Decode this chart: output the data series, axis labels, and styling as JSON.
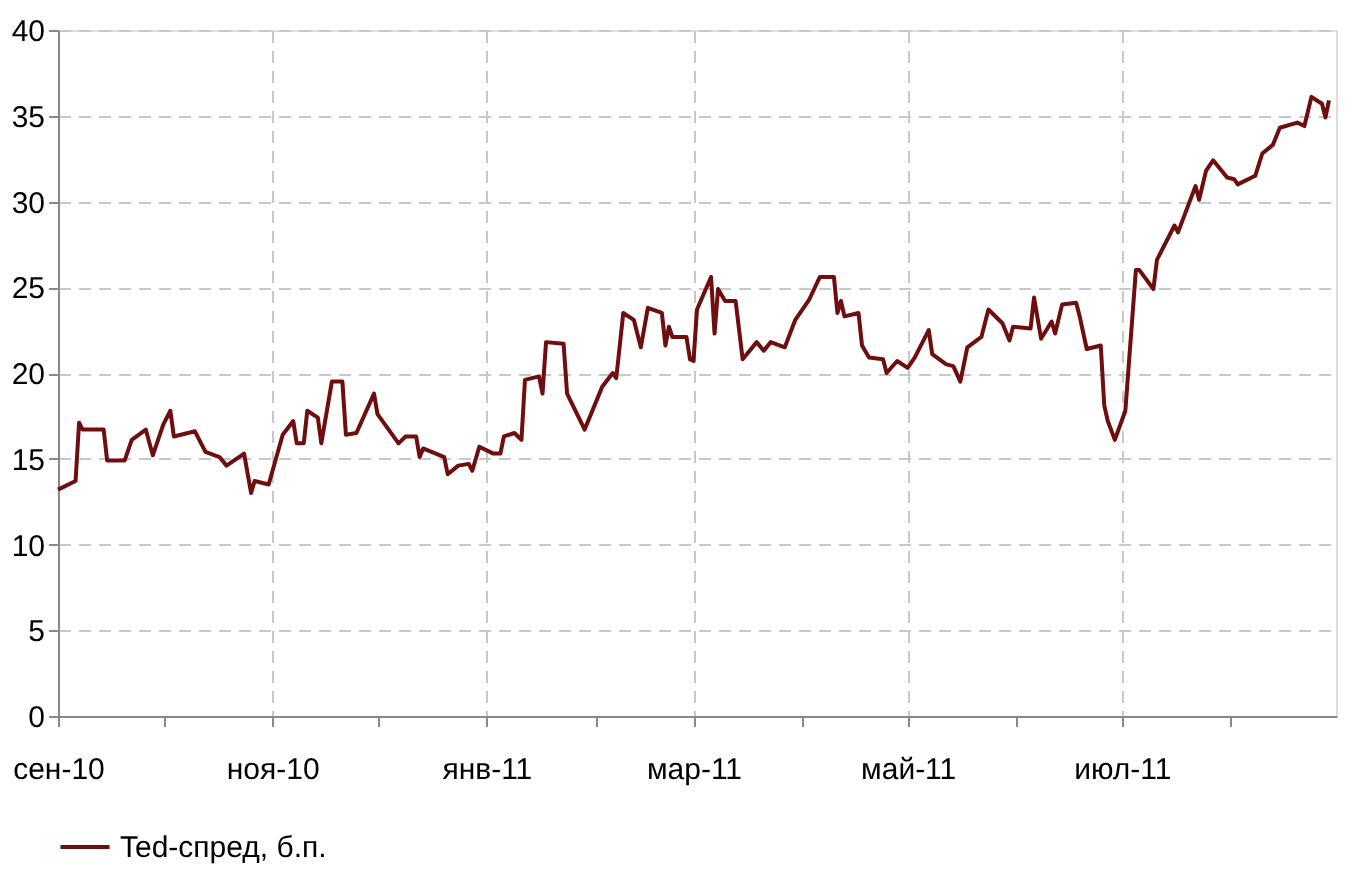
{
  "chart_data": {
    "type": "line",
    "xlim": [
      "2010-09-01",
      "2011-08-31"
    ],
    "xticks": [
      {
        "value": "2010-09-01",
        "label": "сен-10"
      },
      {
        "value": "2010-10-01",
        "label": null
      },
      {
        "value": "2010-11-01",
        "label": "ноя-10"
      },
      {
        "value": "2010-12-01",
        "label": null
      },
      {
        "value": "2011-01-01",
        "label": "янв-11"
      },
      {
        "value": "2011-02-01",
        "label": null
      },
      {
        "value": "2011-03-01",
        "label": "мар-11"
      },
      {
        "value": "2011-04-01",
        "label": null
      },
      {
        "value": "2011-05-01",
        "label": "май-11"
      },
      {
        "value": "2011-06-01",
        "label": null
      },
      {
        "value": "2011-07-01",
        "label": "июл-11"
      },
      {
        "value": "2011-08-01",
        "label": null
      }
    ],
    "ylim": [
      0,
      40
    ],
    "yticks": [
      0,
      5,
      10,
      15,
      20,
      25,
      30,
      35,
      40
    ],
    "grid": true,
    "legend": "bottom",
    "line_style": "solid",
    "marker": "none",
    "x": [
      "2010-09-01",
      "2010-09-06",
      "2010-09-07",
      "2010-09-08",
      "2010-09-14",
      "2010-09-15",
      "2010-09-20",
      "2010-09-22",
      "2010-09-26",
      "2010-09-28",
      "2010-10-01",
      "2010-10-03",
      "2010-10-04",
      "2010-10-10",
      "2010-10-13",
      "2010-10-17",
      "2010-10-19",
      "2010-10-24",
      "2010-10-26",
      "2010-10-27",
      "2010-10-31",
      "2010-11-04",
      "2010-11-07",
      "2010-11-08",
      "2010-11-10",
      "2010-11-11",
      "2010-11-14",
      "2010-11-15",
      "2010-11-18",
      "2010-11-21",
      "2010-11-22",
      "2010-11-25",
      "2010-11-30",
      "2010-12-01",
      "2010-12-07",
      "2010-12-09",
      "2010-12-12",
      "2010-12-13",
      "2010-12-14",
      "2010-12-20",
      "2010-12-21",
      "2010-12-24",
      "2010-12-27",
      "2010-12-28",
      "2010-12-30",
      "2011-01-03",
      "2011-01-05",
      "2011-01-06",
      "2011-01-09",
      "2011-01-11",
      "2011-01-12",
      "2011-01-16",
      "2011-01-17",
      "2011-01-18",
      "2011-01-23",
      "2011-01-24",
      "2011-01-29",
      "2011-02-01",
      "2011-02-03",
      "2011-02-06",
      "2011-02-07",
      "2011-02-09",
      "2011-02-12",
      "2011-02-14",
      "2011-02-16",
      "2011-02-20",
      "2011-02-21",
      "2011-02-22",
      "2011-02-23",
      "2011-02-27",
      "2011-02-28",
      "2011-03-01",
      "2011-03-02",
      "2011-03-06",
      "2011-03-07",
      "2011-03-08",
      "2011-03-10",
      "2011-03-13",
      "2011-03-15",
      "2011-03-19",
      "2011-03-21",
      "2011-03-23",
      "2011-03-27",
      "2011-03-30",
      "2011-04-03",
      "2011-04-06",
      "2011-04-10",
      "2011-04-11",
      "2011-04-12",
      "2011-04-13",
      "2011-04-17",
      "2011-04-18",
      "2011-04-20",
      "2011-04-24",
      "2011-04-25",
      "2011-04-28",
      "2011-05-01",
      "2011-05-03",
      "2011-05-07",
      "2011-05-08",
      "2011-05-12",
      "2011-05-14",
      "2011-05-16",
      "2011-05-18",
      "2011-05-22",
      "2011-05-24",
      "2011-05-28",
      "2011-05-30",
      "2011-05-31",
      "2011-06-05",
      "2011-06-06",
      "2011-06-08",
      "2011-06-11",
      "2011-06-12",
      "2011-06-14",
      "2011-06-18",
      "2011-06-19",
      "2011-06-21",
      "2011-06-25",
      "2011-06-26",
      "2011-06-27",
      "2011-06-29",
      "2011-07-02",
      "2011-07-05",
      "2011-07-06",
      "2011-07-10",
      "2011-07-11",
      "2011-07-16",
      "2011-07-17",
      "2011-07-22",
      "2011-07-23",
      "2011-07-25",
      "2011-07-27",
      "2011-07-31",
      "2011-08-02",
      "2011-08-03",
      "2011-08-08",
      "2011-08-10",
      "2011-08-13",
      "2011-08-15",
      "2011-08-20",
      "2011-08-22",
      "2011-08-24",
      "2011-08-27",
      "2011-08-28",
      "2011-08-29"
    ],
    "series": [
      {
        "name": "Ted-спред, б.п.",
        "color": "#6e0e0e",
        "values": [
          13.2,
          13.7,
          17.1,
          16.7,
          16.7,
          14.9,
          14.9,
          16.1,
          16.7,
          15.2,
          17.0,
          17.8,
          16.3,
          16.6,
          15.4,
          15.1,
          14.6,
          15.3,
          13.0,
          13.7,
          13.5,
          16.4,
          17.2,
          15.9,
          15.9,
          17.8,
          17.4,
          15.9,
          19.5,
          19.5,
          16.4,
          16.5,
          18.8,
          17.6,
          15.9,
          16.3,
          16.3,
          15.1,
          15.6,
          15.1,
          14.1,
          14.6,
          14.7,
          14.3,
          15.7,
          15.3,
          15.3,
          16.3,
          16.5,
          16.1,
          19.6,
          19.8,
          18.8,
          21.8,
          21.7,
          18.8,
          16.7,
          18.2,
          19.2,
          20.0,
          19.7,
          23.5,
          23.1,
          21.5,
          23.8,
          23.5,
          21.6,
          22.7,
          22.1,
          22.1,
          20.8,
          20.7,
          23.7,
          25.6,
          22.3,
          24.9,
          24.2,
          24.2,
          20.8,
          21.8,
          21.3,
          21.8,
          21.5,
          23.1,
          24.3,
          25.6,
          25.6,
          23.5,
          24.2,
          23.3,
          23.5,
          21.6,
          20.9,
          20.8,
          20.0,
          20.7,
          20.3,
          20.9,
          22.5,
          21.1,
          20.5,
          20.4,
          19.5,
          21.5,
          22.1,
          23.7,
          22.9,
          21.9,
          22.7,
          22.6,
          24.4,
          22.0,
          23.0,
          22.3,
          24.0,
          24.1,
          23.3,
          21.4,
          21.6,
          18.1,
          17.2,
          16.1,
          17.8,
          26.0,
          26.0,
          24.9,
          26.6,
          28.6,
          28.2,
          30.9,
          30.1,
          31.8,
          32.4,
          31.4,
          31.3,
          31.0,
          31.5,
          32.8,
          33.3,
          34.3,
          34.6,
          34.4,
          36.1,
          35.7,
          34.9,
          35.9
        ]
      }
    ]
  }
}
